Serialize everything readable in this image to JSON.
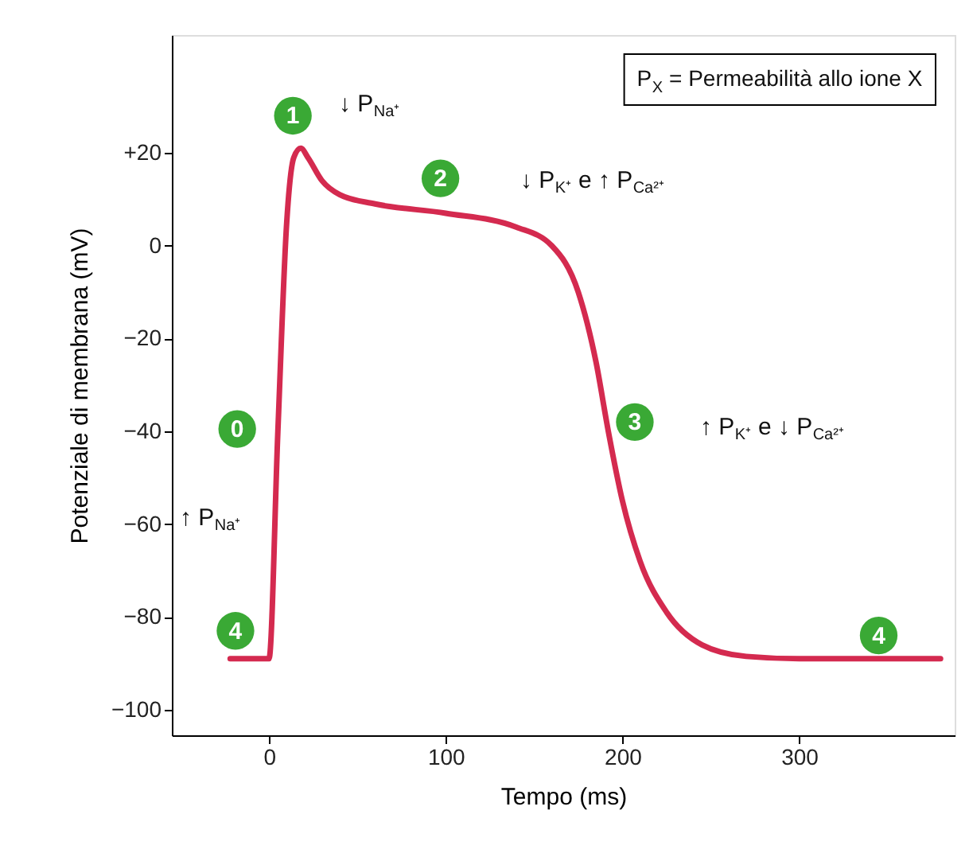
{
  "chart_data": {
    "type": "line",
    "xlabel": "Tempo (ms)",
    "ylabel": "Potenziale di membrana (mV)",
    "x": [
      -22,
      0,
      5,
      10,
      14,
      18,
      22,
      30,
      40,
      60,
      100,
      140,
      160,
      175,
      185,
      192,
      200,
      210,
      225,
      245,
      270,
      300,
      340,
      380
    ],
    "series": [
      {
        "color": "#d42a4f",
        "values": [
          -89,
          -89,
          -40,
          5,
          19,
          21,
          19,
          14,
          11,
          9,
          7,
          4,
          0,
          -10,
          -25,
          -40,
          -55,
          -68,
          -79,
          -86,
          -88.5,
          -89,
          -89,
          -89
        ]
      }
    ],
    "xlim": [
      -55,
      388
    ],
    "ylim": [
      -105.5,
      45.4
    ],
    "xticks": [
      0,
      100,
      200,
      300
    ],
    "yticks": [
      {
        "value": 20,
        "label": "+20"
      },
      0,
      -20,
      -40,
      -60,
      -80,
      -100
    ],
    "grid": false,
    "marker": "none",
    "line_style": "solid",
    "annotations": [
      {
        "text": "0",
        "x": -18,
        "y": -39.5
      },
      {
        "text": "1",
        "x": 13.5,
        "y": 28
      },
      {
        "text": "2",
        "x": 97,
        "y": 14.5
      },
      {
        "text": "3",
        "x": 207,
        "y": -38
      },
      {
        "text": "4",
        "x": -19,
        "y": -83
      },
      {
        "text": "4",
        "x": 345,
        "y": -84
      },
      "↓ P$_{Na⁺}$",
      "↓ P$_{K⁺}$ e ↑ P$_{Ca²⁺}$",
      "↑ P$_{K⁺}$ e ↓ P$_{Ca²⁺}$",
      "↑ P$_{Na⁺}$",
      "P$_{X}$ = Permeabilità allo ione X"
    ]
  }
}
